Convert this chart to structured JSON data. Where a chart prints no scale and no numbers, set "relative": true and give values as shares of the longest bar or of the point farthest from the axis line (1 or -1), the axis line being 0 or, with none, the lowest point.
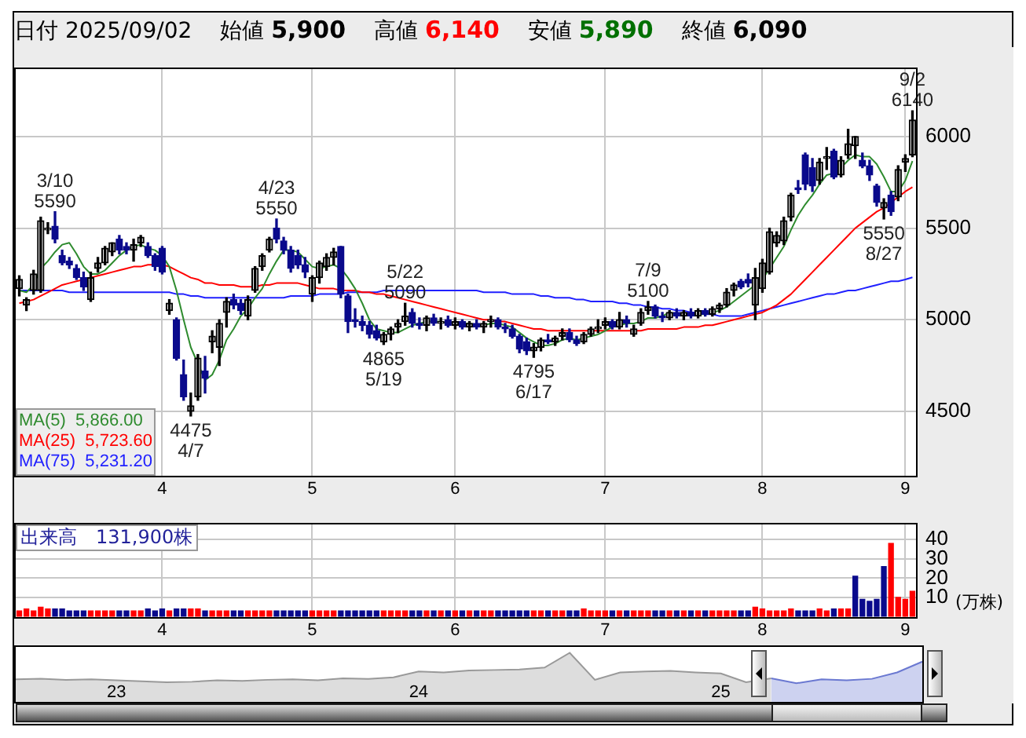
{
  "chart_data": [
    {
      "type": "candlestick",
      "title": "日付 2025/09/02",
      "annotations": [
        "始値 5,900",
        "高値 6,140",
        "安値 5,890",
        "終値 6,090",
        {
          "text": "3/10\n5590",
          "y": 5590
        },
        {
          "text": "4475\n4/7",
          "y": 4475
        },
        {
          "text": "4/23\n5550",
          "y": 5550
        },
        {
          "text": "4865\n5/19",
          "y": 4865
        },
        {
          "text": "5/22\n5090",
          "y": 5090
        },
        {
          "text": "4795\n6/17",
          "y": 4795
        },
        {
          "text": "7/9\n5100",
          "y": 5100
        },
        {
          "text": "5550\n8/27",
          "y": 5550
        },
        {
          "text": "9/2\n6140",
          "y": 6140
        }
      ],
      "categories": [
        null,
        null,
        null,
        null,
        null,
        null,
        null,
        null,
        null,
        null,
        null,
        null,
        null,
        null,
        null,
        null,
        null,
        null,
        null,
        null,
        "4",
        null,
        null,
        null,
        null,
        null,
        null,
        null,
        null,
        null,
        null,
        null,
        null,
        null,
        null,
        null,
        null,
        null,
        null,
        null,
        null,
        "5",
        null,
        null,
        null,
        null,
        null,
        null,
        null,
        null,
        null,
        null,
        null,
        null,
        null,
        null,
        null,
        null,
        null,
        null,
        null,
        "6",
        null,
        null,
        null,
        null,
        null,
        null,
        null,
        null,
        null,
        null,
        null,
        null,
        null,
        null,
        null,
        null,
        null,
        null,
        null,
        null,
        "7",
        null,
        null,
        null,
        null,
        null,
        null,
        null,
        null,
        null,
        null,
        null,
        null,
        null,
        null,
        null,
        null,
        null,
        null,
        null,
        null,
        null,
        "8",
        null,
        null,
        null,
        null,
        null,
        null,
        null,
        null,
        null,
        null,
        null,
        null,
        null,
        null,
        null,
        null,
        null,
        null,
        null,
        "9",
        null
      ],
      "ylim": [
        4150,
        6370
      ],
      "yticks": [
        4500,
        5000,
        5500,
        6000
      ],
      "grid": true,
      "legend": "bottom left",
      "marker": "none",
      "series": [
        {
          "type": "candlestick",
          "colors": [
            "#000000",
            "#000000",
            "#000000",
            "#000000",
            "#000000",
            "#0a0a8c",
            "#0a0a8c",
            "#0a0a8c",
            "#0a0a8c",
            "#0a0a8c",
            "#000000",
            "#000000",
            "#000000",
            "#000000",
            "#0a0a8c",
            "#0a0a8c",
            "#000000",
            "#000000",
            "#0a0a8c",
            "#0a0a8c",
            "#0a0a8c",
            "#000000",
            "#0a0a8c",
            "#0a0a8c",
            "#000000",
            "#000000",
            "#0a0a8c",
            "#000000",
            "#000000",
            "#000000",
            "#0a0a8c",
            "#0a0a8c",
            "#000000",
            "#000000",
            "#000000",
            "#000000",
            "#0a0a8c",
            "#0a0a8c",
            "#0a0a8c",
            "#0a0a8c",
            "#0a0a8c",
            "#000000",
            "#000000",
            "#000000",
            "#000000",
            "#0a0a8c",
            "#0a0a8c",
            "#0a0a8c",
            "#0a0a8c",
            "#0a0a8c",
            "#0a0a8c",
            "#000000",
            "#000000",
            "#000000",
            "#000000",
            "#0a0a8c",
            "#0a0a8c",
            "#000000",
            "#0a0a8c",
            "#000000",
            "#0a0a8c",
            "#000000",
            "#0a0a8c",
            "#000000",
            "#0a0a8c",
            "#000000",
            "#000000",
            "#0a0a8c",
            "#0a0a8c",
            "#0a0a8c",
            "#0a0a8c",
            "#0a0a8c",
            "#000000",
            "#000000",
            "#0a0a8c",
            "#000000",
            "#000000",
            "#0a0a8c",
            "#0a0a8c",
            "#000000",
            "#000000",
            "#000000",
            "#000000",
            "#0a0a8c",
            "#000000",
            "#0a0a8c",
            "#000000",
            "#000000",
            "#000000",
            "#0a0a8c",
            "#0a0a8c",
            "#000000",
            "#0a0a8c",
            "#000000",
            "#0a0a8c",
            "#000000",
            "#0a0a8c",
            "#000000",
            "#000000",
            "#000000",
            "#000000",
            "#0a0a8c",
            "#0a0a8c",
            "#000000",
            "#000000",
            "#000000",
            "#000000",
            "#000000",
            "#000000",
            "#0a0a8c",
            "#0a0a8c",
            "#0a0a8c",
            "#000000",
            "#000000",
            "#0a0a8c",
            "#000000",
            "#000000",
            "#000000",
            "#0a0a8c",
            "#0a0a8c",
            "#0a0a8c",
            "#000000",
            "#0a0a8c",
            "#000000",
            "#000000",
            "#000000"
          ],
          "ohlc": [
            [
              5170,
              5240,
              5130,
              5220
            ],
            [
              5080,
              5120,
              5050,
              5110
            ],
            [
              5160,
              5270,
              5140,
              5250
            ],
            [
              5160,
              5560,
              5150,
              5540
            ],
            [
              5490,
              5530,
              5470,
              5500
            ],
            [
              5510,
              5590,
              5420,
              5440
            ],
            [
              5350,
              5380,
              5300,
              5310
            ],
            [
              5320,
              5340,
              5280,
              5300
            ],
            [
              5280,
              5300,
              5220,
              5230
            ],
            [
              5230,
              5260,
              5160,
              5180
            ],
            [
              5110,
              5260,
              5100,
              5230
            ],
            [
              5280,
              5340,
              5260,
              5310
            ],
            [
              5310,
              5400,
              5300,
              5390
            ],
            [
              5370,
              5420,
              5350,
              5420
            ],
            [
              5440,
              5460,
              5360,
              5380
            ],
            [
              5400,
              5420,
              5360,
              5380
            ],
            [
              5380,
              5440,
              5320,
              5410
            ],
            [
              5420,
              5460,
              5400,
              5450
            ],
            [
              5400,
              5420,
              5340,
              5350
            ],
            [
              5350,
              5360,
              5270,
              5290
            ],
            [
              5390,
              5400,
              5250,
              5260
            ],
            [
              5050,
              5110,
              5030,
              5090
            ],
            [
              5000,
              5010,
              4780,
              4790
            ],
            [
              4700,
              4780,
              4560,
              4580
            ],
            [
              4500,
              4600,
              4475,
              4530
            ],
            [
              4580,
              4810,
              4560,
              4790
            ],
            [
              4720,
              4800,
              4600,
              4680
            ],
            [
              4880,
              4940,
              4820,
              4910
            ],
            [
              4850,
              5000,
              4750,
              4980
            ],
            [
              5040,
              5120,
              4960,
              5100
            ],
            [
              5110,
              5140,
              5060,
              5080
            ],
            [
              5090,
              5110,
              5030,
              5050
            ],
            [
              5020,
              5130,
              5000,
              5110
            ],
            [
              5160,
              5290,
              5150,
              5280
            ],
            [
              5290,
              5360,
              5270,
              5350
            ],
            [
              5380,
              5450,
              5370,
              5440
            ],
            [
              5500,
              5550,
              5420,
              5440
            ],
            [
              5430,
              5450,
              5360,
              5380
            ],
            [
              5380,
              5400,
              5260,
              5280
            ],
            [
              5350,
              5380,
              5280,
              5300
            ],
            [
              5300,
              5340,
              5230,
              5260
            ],
            [
              5140,
              5240,
              5100,
              5230
            ],
            [
              5230,
              5320,
              5200,
              5310
            ],
            [
              5290,
              5360,
              5270,
              5340
            ],
            [
              5340,
              5390,
              5300,
              5370
            ],
            [
              5400,
              5400,
              5120,
              5140
            ],
            [
              5130,
              5140,
              4930,
              4990
            ],
            [
              5000,
              5060,
              4960,
              4990
            ],
            [
              4990,
              5020,
              4940,
              4970
            ],
            [
              4970,
              4990,
              4900,
              4920
            ],
            [
              4940,
              4970,
              4890,
              4900
            ],
            [
              4880,
              4930,
              4865,
              4920
            ],
            [
              4920,
              4960,
              4890,
              4950
            ],
            [
              4960,
              5000,
              4930,
              4980
            ],
            [
              4990,
              5090,
              4970,
              5020
            ],
            [
              5040,
              5060,
              4960,
              4980
            ],
            [
              4980,
              5010,
              4950,
              4970
            ],
            [
              4970,
              5020,
              4940,
              5010
            ],
            [
              5010,
              5030,
              4970,
              4980
            ],
            [
              4980,
              5010,
              4950,
              4990
            ],
            [
              5000,
              5020,
              4960,
              4970
            ],
            [
              4970,
              5010,
              4950,
              4990
            ],
            [
              4990,
              5000,
              4950,
              4960
            ],
            [
              4960,
              4990,
              4940,
              4980
            ],
            [
              4980,
              5000,
              4950,
              4960
            ],
            [
              4960,
              4990,
              4930,
              4980
            ],
            [
              4990,
              5020,
              4960,
              5000
            ],
            [
              5000,
              5010,
              4950,
              4960
            ],
            [
              4960,
              4980,
              4930,
              4950
            ],
            [
              4950,
              4970,
              4900,
              4910
            ],
            [
              4910,
              4920,
              4820,
              4840
            ],
            [
              4880,
              4900,
              4810,
              4830
            ],
            [
              4830,
              4870,
              4795,
              4850
            ],
            [
              4850,
              4900,
              4830,
              4890
            ],
            [
              4890,
              4920,
              4870,
              4880
            ],
            [
              4880,
              4910,
              4860,
              4900
            ],
            [
              4910,
              4950,
              4890,
              4930
            ],
            [
              4930,
              4950,
              4880,
              4890
            ],
            [
              4890,
              4910,
              4860,
              4870
            ],
            [
              4880,
              4930,
              4870,
              4920
            ],
            [
              4920,
              4960,
              4910,
              4950
            ],
            [
              4950,
              5000,
              4930,
              4960
            ],
            [
              4970,
              5010,
              4950,
              4990
            ],
            [
              4990,
              5000,
              4950,
              4960
            ],
            [
              4960,
              5040,
              4950,
              5000
            ],
            [
              5000,
              5020,
              4960,
              4980
            ],
            [
              4920,
              4970,
              4910,
              4950
            ],
            [
              4980,
              5060,
              4970,
              5040
            ],
            [
              5050,
              5100,
              5030,
              5070
            ],
            [
              5070,
              5080,
              5010,
              5020
            ],
            [
              5020,
              5040,
              4990,
              5010
            ],
            [
              5010,
              5050,
              5000,
              5040
            ],
            [
              5040,
              5060,
              5010,
              5020
            ],
            [
              5020,
              5050,
              5000,
              5040
            ],
            [
              5040,
              5060,
              5010,
              5020
            ],
            [
              5020,
              5060,
              5010,
              5050
            ],
            [
              5050,
              5060,
              5020,
              5030
            ],
            [
              5030,
              5070,
              5020,
              5060
            ],
            [
              5060,
              5090,
              5040,
              5080
            ],
            [
              5080,
              5170,
              5070,
              5150
            ],
            [
              5160,
              5200,
              5130,
              5190
            ],
            [
              5210,
              5220,
              5170,
              5180
            ],
            [
              5220,
              5250,
              5180,
              5200
            ],
            [
              5080,
              5280,
              5000,
              5230
            ],
            [
              5170,
              5330,
              5150,
              5310
            ],
            [
              5260,
              5500,
              5250,
              5480
            ],
            [
              5420,
              5480,
              5400,
              5460
            ],
            [
              5430,
              5560,
              5410,
              5540
            ],
            [
              5560,
              5690,
              5540,
              5680
            ],
            [
              5720,
              5760,
              5690,
              5710
            ],
            [
              5900,
              5910,
              5710,
              5740
            ],
            [
              5830,
              5880,
              5700,
              5730
            ],
            [
              5760,
              5880,
              5740,
              5860
            ],
            [
              5880,
              5940,
              5820,
              5890
            ],
            [
              5920,
              5930,
              5770,
              5780
            ],
            [
              5790,
              5890,
              5780,
              5870
            ],
            [
              5900,
              6040,
              5880,
              5960
            ],
            [
              5950,
              6000,
              5880,
              6000
            ],
            [
              5870,
              5910,
              5830,
              5840
            ],
            [
              5840,
              5870,
              5760,
              5790
            ],
            [
              5730,
              5740,
              5620,
              5640
            ],
            [
              5610,
              5660,
              5550,
              5640
            ],
            [
              5680,
              5700,
              5570,
              5590
            ],
            [
              5670,
              5840,
              5650,
              5820
            ],
            [
              5860,
              5900,
              5810,
              5880
            ],
            [
              5900,
              6140,
              5890,
              6090
            ]
          ]
        },
        {
          "type": "line",
          "name": "MA(5) 5,866.00",
          "color": "#2e8b2e",
          "values": [
            5160,
            5150,
            5190,
            5280,
            5320,
            5370,
            5410,
            5420,
            5360,
            5290,
            5250,
            5250,
            5270,
            5310,
            5350,
            5380,
            5400,
            5410,
            5390,
            5380,
            5350,
            5290,
            5160,
            5000,
            4850,
            4760,
            4670,
            4700,
            4780,
            4890,
            4950,
            5020,
            5060,
            5120,
            5170,
            5250,
            5320,
            5380,
            5380,
            5370,
            5330,
            5290,
            5280,
            5290,
            5300,
            5280,
            5230,
            5170,
            5090,
            5000,
            4950,
            4940,
            4930,
            4930,
            4950,
            4970,
            4980,
            4990,
            4990,
            4990,
            4980,
            4990,
            4980,
            4980,
            4970,
            4970,
            4980,
            4980,
            4970,
            4960,
            4930,
            4900,
            4880,
            4860,
            4860,
            4870,
            4890,
            4900,
            4890,
            4900,
            4910,
            4920,
            4940,
            4960,
            4970,
            4980,
            4980,
            4990,
            5010,
            5010,
            5020,
            5040,
            5030,
            5030,
            5030,
            5030,
            5030,
            5040,
            5050,
            5070,
            5100,
            5130,
            5160,
            5190,
            5220,
            5280,
            5340,
            5400,
            5490,
            5570,
            5630,
            5680,
            5740,
            5790,
            5800,
            5830,
            5870,
            5900,
            5890,
            5890,
            5850,
            5780,
            5700,
            5700,
            5760,
            5866
          ]
        },
        {
          "type": "line",
          "name": "MA(25) 5,723.60",
          "color": "#ff0000",
          "values": [
            5090,
            5100,
            5110,
            5130,
            5150,
            5170,
            5190,
            5200,
            5210,
            5220,
            5230,
            5240,
            5250,
            5260,
            5270,
            5280,
            5290,
            5290,
            5300,
            5300,
            5300,
            5290,
            5270,
            5250,
            5230,
            5220,
            5200,
            5200,
            5190,
            5190,
            5190,
            5180,
            5180,
            5180,
            5190,
            5190,
            5200,
            5200,
            5200,
            5200,
            5190,
            5180,
            5170,
            5170,
            5170,
            5160,
            5160,
            5160,
            5150,
            5150,
            5140,
            5140,
            5130,
            5120,
            5110,
            5100,
            5090,
            5080,
            5070,
            5060,
            5050,
            5040,
            5030,
            5020,
            5010,
            5000,
            5000,
            4990,
            4990,
            4980,
            4970,
            4960,
            4950,
            4950,
            4940,
            4940,
            4940,
            4940,
            4940,
            4940,
            4940,
            4940,
            4940,
            4940,
            4940,
            4940,
            4940,
            4940,
            4950,
            4950,
            4950,
            4950,
            4950,
            4960,
            4960,
            4960,
            4970,
            4970,
            4980,
            4990,
            5000,
            5010,
            5020,
            5030,
            5040,
            5060,
            5080,
            5110,
            5140,
            5180,
            5220,
            5260,
            5300,
            5340,
            5380,
            5420,
            5460,
            5500,
            5530,
            5560,
            5590,
            5610,
            5640,
            5670,
            5700,
            5723.6
          ]
        },
        {
          "type": "line",
          "name": "MA(75) 5,231.20",
          "color": "#2020ff",
          "values": [
            5160,
            5160,
            5160,
            5160,
            5160,
            5160,
            5160,
            5150,
            5150,
            5150,
            5150,
            5150,
            5150,
            5150,
            5150,
            5150,
            5150,
            5150,
            5150,
            5150,
            5150,
            5150,
            5140,
            5140,
            5130,
            5130,
            5120,
            5120,
            5120,
            5120,
            5120,
            5120,
            5120,
            5120,
            5120,
            5120,
            5120,
            5120,
            5130,
            5130,
            5130,
            5130,
            5140,
            5140,
            5140,
            5140,
            5150,
            5150,
            5150,
            5150,
            5150,
            5160,
            5160,
            5160,
            5160,
            5160,
            5160,
            5160,
            5160,
            5160,
            5160,
            5160,
            5160,
            5160,
            5160,
            5150,
            5150,
            5150,
            5150,
            5140,
            5140,
            5140,
            5140,
            5130,
            5130,
            5120,
            5120,
            5120,
            5110,
            5110,
            5100,
            5100,
            5100,
            5100,
            5090,
            5090,
            5080,
            5080,
            5070,
            5070,
            5060,
            5060,
            5050,
            5050,
            5040,
            5040,
            5030,
            5030,
            5020,
            5020,
            5020,
            5020,
            5030,
            5040,
            5050,
            5060,
            5070,
            5080,
            5090,
            5100,
            5110,
            5120,
            5130,
            5140,
            5140,
            5150,
            5160,
            5160,
            5170,
            5180,
            5190,
            5200,
            5210,
            5210,
            5220,
            5231.2
          ]
        }
      ]
    },
    {
      "type": "bar",
      "title": "出来高　131,900株",
      "ylabel": "(万株)",
      "categories": [
        null,
        null,
        null,
        null,
        null,
        null,
        null,
        null,
        null,
        null,
        null,
        null,
        null,
        null,
        null,
        null,
        null,
        null,
        null,
        null,
        "4",
        null,
        null,
        null,
        null,
        null,
        null,
        null,
        null,
        null,
        null,
        null,
        null,
        null,
        null,
        null,
        null,
        null,
        null,
        null,
        null,
        "5",
        null,
        null,
        null,
        null,
        null,
        null,
        null,
        null,
        null,
        null,
        null,
        null,
        null,
        null,
        null,
        null,
        null,
        null,
        null,
        "6",
        null,
        null,
        null,
        null,
        null,
        null,
        null,
        null,
        null,
        null,
        null,
        null,
        null,
        null,
        null,
        null,
        null,
        null,
        null,
        null,
        "7",
        null,
        null,
        null,
        null,
        null,
        null,
        null,
        null,
        null,
        null,
        null,
        null,
        null,
        null,
        null,
        null,
        null,
        null,
        null,
        null,
        null,
        "8",
        null,
        null,
        null,
        null,
        null,
        null,
        null,
        null,
        null,
        null,
        null,
        null,
        null,
        null,
        null,
        null,
        null,
        null,
        null,
        "9",
        null
      ],
      "ylim": [
        0,
        48
      ],
      "yticks": [
        10,
        20,
        30,
        40
      ],
      "grid": true,
      "values": [
        3,
        4,
        3,
        5,
        4,
        4,
        4,
        3,
        3,
        3,
        3,
        3,
        3,
        3,
        3,
        3,
        3,
        3,
        4,
        3,
        4,
        3,
        4,
        4,
        4,
        4,
        3,
        3,
        3,
        3,
        3,
        3,
        3,
        3,
        3,
        3,
        3,
        3,
        3,
        3,
        3,
        3,
        3,
        3,
        3,
        3,
        3,
        3,
        3,
        3,
        3,
        3,
        3,
        3,
        3,
        3,
        3,
        3,
        3,
        3,
        3,
        3,
        3,
        3,
        3,
        3,
        3,
        3,
        3,
        3,
        3,
        3,
        3,
        3,
        3,
        3,
        3,
        3,
        3,
        4,
        3,
        3,
        3,
        3,
        3,
        3,
        3,
        3,
        3,
        3,
        3,
        3,
        3,
        3,
        3,
        3,
        3,
        3,
        3,
        3,
        3,
        3,
        3,
        5,
        4,
        3,
        3,
        3,
        4,
        3,
        3,
        3,
        4,
        3,
        4,
        4,
        4,
        21,
        9,
        8,
        9,
        26,
        38,
        10,
        9,
        13.19
      ],
      "colors": [
        "#ff0000",
        "#ff0000",
        "#ff0000",
        "#ff0000",
        "#ff0000",
        "#0a0a8c",
        "#0a0a8c",
        "#0a0a8c",
        "#0a0a8c",
        "#0a0a8c",
        "#ff0000",
        "#ff0000",
        "#ff0000",
        "#ff0000",
        "#0a0a8c",
        "#0a0a8c",
        "#ff0000",
        "#ff0000",
        "#0a0a8c",
        "#0a0a8c",
        "#0a0a8c",
        "#ff0000",
        "#0a0a8c",
        "#0a0a8c",
        "#ff0000",
        "#ff0000",
        "#0a0a8c",
        "#ff0000",
        "#ff0000",
        "#ff0000",
        "#0a0a8c",
        "#0a0a8c",
        "#ff0000",
        "#ff0000",
        "#ff0000",
        "#ff0000",
        "#0a0a8c",
        "#0a0a8c",
        "#0a0a8c",
        "#0a0a8c",
        "#0a0a8c",
        "#ff0000",
        "#ff0000",
        "#ff0000",
        "#ff0000",
        "#0a0a8c",
        "#0a0a8c",
        "#0a0a8c",
        "#0a0a8c",
        "#0a0a8c",
        "#0a0a8c",
        "#ff0000",
        "#ff0000",
        "#ff0000",
        "#ff0000",
        "#0a0a8c",
        "#0a0a8c",
        "#ff0000",
        "#0a0a8c",
        "#ff0000",
        "#0a0a8c",
        "#ff0000",
        "#0a0a8c",
        "#ff0000",
        "#0a0a8c",
        "#ff0000",
        "#ff0000",
        "#0a0a8c",
        "#0a0a8c",
        "#0a0a8c",
        "#0a0a8c",
        "#0a0a8c",
        "#ff0000",
        "#ff0000",
        "#0a0a8c",
        "#ff0000",
        "#ff0000",
        "#0a0a8c",
        "#0a0a8c",
        "#ff0000",
        "#ff0000",
        "#ff0000",
        "#ff0000",
        "#0a0a8c",
        "#ff0000",
        "#0a0a8c",
        "#ff0000",
        "#ff0000",
        "#ff0000",
        "#0a0a8c",
        "#0a0a8c",
        "#ff0000",
        "#0a0a8c",
        "#ff0000",
        "#0a0a8c",
        "#ff0000",
        "#0a0a8c",
        "#ff0000",
        "#ff0000",
        "#ff0000",
        "#ff0000",
        "#0a0a8c",
        "#0a0a8c",
        "#ff0000",
        "#ff0000",
        "#ff0000",
        "#ff0000",
        "#ff0000",
        "#ff0000",
        "#0a0a8c",
        "#0a0a8c",
        "#0a0a8c",
        "#ff0000",
        "#ff0000",
        "#0a0a8c",
        "#ff0000",
        "#ff0000",
        "#0a0a8c",
        "#0a0a8c",
        "#0a0a8c",
        "#0a0a8c",
        "#0a0a8c",
        "#ff0000",
        "#ff0000",
        "#ff0000",
        "#ff0000"
      ]
    },
    {
      "type": "area",
      "relative": true,
      "tick_labels": "x",
      "categories": [
        null,
        null,
        null,
        null,
        "23",
        null,
        null,
        null,
        null,
        null,
        null,
        null,
        null,
        null,
        null,
        null,
        "24",
        null,
        null,
        null,
        null,
        null,
        null,
        null,
        null,
        null,
        null,
        null,
        "25",
        null,
        null,
        null,
        null,
        null,
        null,
        null,
        null
      ],
      "series": [
        {
          "color": "#999999",
          "values": [
            0.46,
            0.47,
            0.45,
            0.46,
            0.44,
            0.42,
            0.4,
            0.41,
            0.44,
            0.43,
            0.45,
            0.46,
            0.44,
            0.48,
            0.47,
            0.5,
            0.62,
            0.6,
            0.64,
            0.65,
            0.66,
            0.7,
            1.0,
            0.45,
            0.6,
            0.62,
            0.63,
            0.6,
            0.58,
            0.4,
            0.48,
            null,
            null,
            null,
            null,
            null,
            null
          ]
        },
        {
          "color": "#6a78d1",
          "values": [
            null,
            null,
            null,
            null,
            null,
            null,
            null,
            null,
            null,
            null,
            null,
            null,
            null,
            null,
            null,
            null,
            null,
            null,
            null,
            null,
            null,
            null,
            null,
            null,
            null,
            null,
            null,
            null,
            null,
            null,
            0.48,
            0.38,
            0.46,
            0.44,
            0.47,
            0.6,
            0.82
          ]
        }
      ]
    }
  ]
}
